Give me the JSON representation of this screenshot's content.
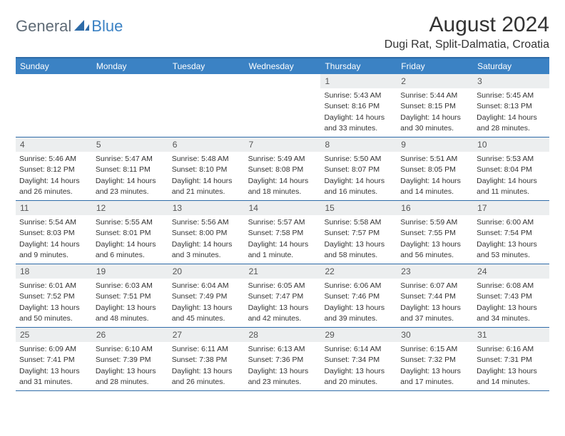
{
  "logo": {
    "general": "General",
    "blue": "Blue"
  },
  "title": "August 2024",
  "location": "Dugi Rat, Split-Dalmatia, Croatia",
  "colors": {
    "header_bg": "#3b82c4",
    "rule": "#2e6ba8",
    "daynum_bg": "#eceeef",
    "text": "#333333",
    "logo_gray": "#5f6b76",
    "logo_blue": "#3b82c4"
  },
  "dow": [
    "Sunday",
    "Monday",
    "Tuesday",
    "Wednesday",
    "Thursday",
    "Friday",
    "Saturday"
  ],
  "weeks": [
    [
      {
        "n": "",
        "empty": true
      },
      {
        "n": "",
        "empty": true
      },
      {
        "n": "",
        "empty": true
      },
      {
        "n": "",
        "empty": true
      },
      {
        "n": "1",
        "sr": "Sunrise: 5:43 AM",
        "ss": "Sunset: 8:16 PM",
        "d1": "Daylight: 14 hours",
        "d2": "and 33 minutes."
      },
      {
        "n": "2",
        "sr": "Sunrise: 5:44 AM",
        "ss": "Sunset: 8:15 PM",
        "d1": "Daylight: 14 hours",
        "d2": "and 30 minutes."
      },
      {
        "n": "3",
        "sr": "Sunrise: 5:45 AM",
        "ss": "Sunset: 8:13 PM",
        "d1": "Daylight: 14 hours",
        "d2": "and 28 minutes."
      }
    ],
    [
      {
        "n": "4",
        "sr": "Sunrise: 5:46 AM",
        "ss": "Sunset: 8:12 PM",
        "d1": "Daylight: 14 hours",
        "d2": "and 26 minutes."
      },
      {
        "n": "5",
        "sr": "Sunrise: 5:47 AM",
        "ss": "Sunset: 8:11 PM",
        "d1": "Daylight: 14 hours",
        "d2": "and 23 minutes."
      },
      {
        "n": "6",
        "sr": "Sunrise: 5:48 AM",
        "ss": "Sunset: 8:10 PM",
        "d1": "Daylight: 14 hours",
        "d2": "and 21 minutes."
      },
      {
        "n": "7",
        "sr": "Sunrise: 5:49 AM",
        "ss": "Sunset: 8:08 PM",
        "d1": "Daylight: 14 hours",
        "d2": "and 18 minutes."
      },
      {
        "n": "8",
        "sr": "Sunrise: 5:50 AM",
        "ss": "Sunset: 8:07 PM",
        "d1": "Daylight: 14 hours",
        "d2": "and 16 minutes."
      },
      {
        "n": "9",
        "sr": "Sunrise: 5:51 AM",
        "ss": "Sunset: 8:05 PM",
        "d1": "Daylight: 14 hours",
        "d2": "and 14 minutes."
      },
      {
        "n": "10",
        "sr": "Sunrise: 5:53 AM",
        "ss": "Sunset: 8:04 PM",
        "d1": "Daylight: 14 hours",
        "d2": "and 11 minutes."
      }
    ],
    [
      {
        "n": "11",
        "sr": "Sunrise: 5:54 AM",
        "ss": "Sunset: 8:03 PM",
        "d1": "Daylight: 14 hours",
        "d2": "and 9 minutes."
      },
      {
        "n": "12",
        "sr": "Sunrise: 5:55 AM",
        "ss": "Sunset: 8:01 PM",
        "d1": "Daylight: 14 hours",
        "d2": "and 6 minutes."
      },
      {
        "n": "13",
        "sr": "Sunrise: 5:56 AM",
        "ss": "Sunset: 8:00 PM",
        "d1": "Daylight: 14 hours",
        "d2": "and 3 minutes."
      },
      {
        "n": "14",
        "sr": "Sunrise: 5:57 AM",
        "ss": "Sunset: 7:58 PM",
        "d1": "Daylight: 14 hours",
        "d2": "and 1 minute."
      },
      {
        "n": "15",
        "sr": "Sunrise: 5:58 AM",
        "ss": "Sunset: 7:57 PM",
        "d1": "Daylight: 13 hours",
        "d2": "and 58 minutes."
      },
      {
        "n": "16",
        "sr": "Sunrise: 5:59 AM",
        "ss": "Sunset: 7:55 PM",
        "d1": "Daylight: 13 hours",
        "d2": "and 56 minutes."
      },
      {
        "n": "17",
        "sr": "Sunrise: 6:00 AM",
        "ss": "Sunset: 7:54 PM",
        "d1": "Daylight: 13 hours",
        "d2": "and 53 minutes."
      }
    ],
    [
      {
        "n": "18",
        "sr": "Sunrise: 6:01 AM",
        "ss": "Sunset: 7:52 PM",
        "d1": "Daylight: 13 hours",
        "d2": "and 50 minutes."
      },
      {
        "n": "19",
        "sr": "Sunrise: 6:03 AM",
        "ss": "Sunset: 7:51 PM",
        "d1": "Daylight: 13 hours",
        "d2": "and 48 minutes."
      },
      {
        "n": "20",
        "sr": "Sunrise: 6:04 AM",
        "ss": "Sunset: 7:49 PM",
        "d1": "Daylight: 13 hours",
        "d2": "and 45 minutes."
      },
      {
        "n": "21",
        "sr": "Sunrise: 6:05 AM",
        "ss": "Sunset: 7:47 PM",
        "d1": "Daylight: 13 hours",
        "d2": "and 42 minutes."
      },
      {
        "n": "22",
        "sr": "Sunrise: 6:06 AM",
        "ss": "Sunset: 7:46 PM",
        "d1": "Daylight: 13 hours",
        "d2": "and 39 minutes."
      },
      {
        "n": "23",
        "sr": "Sunrise: 6:07 AM",
        "ss": "Sunset: 7:44 PM",
        "d1": "Daylight: 13 hours",
        "d2": "and 37 minutes."
      },
      {
        "n": "24",
        "sr": "Sunrise: 6:08 AM",
        "ss": "Sunset: 7:43 PM",
        "d1": "Daylight: 13 hours",
        "d2": "and 34 minutes."
      }
    ],
    [
      {
        "n": "25",
        "sr": "Sunrise: 6:09 AM",
        "ss": "Sunset: 7:41 PM",
        "d1": "Daylight: 13 hours",
        "d2": "and 31 minutes."
      },
      {
        "n": "26",
        "sr": "Sunrise: 6:10 AM",
        "ss": "Sunset: 7:39 PM",
        "d1": "Daylight: 13 hours",
        "d2": "and 28 minutes."
      },
      {
        "n": "27",
        "sr": "Sunrise: 6:11 AM",
        "ss": "Sunset: 7:38 PM",
        "d1": "Daylight: 13 hours",
        "d2": "and 26 minutes."
      },
      {
        "n": "28",
        "sr": "Sunrise: 6:13 AM",
        "ss": "Sunset: 7:36 PM",
        "d1": "Daylight: 13 hours",
        "d2": "and 23 minutes."
      },
      {
        "n": "29",
        "sr": "Sunrise: 6:14 AM",
        "ss": "Sunset: 7:34 PM",
        "d1": "Daylight: 13 hours",
        "d2": "and 20 minutes."
      },
      {
        "n": "30",
        "sr": "Sunrise: 6:15 AM",
        "ss": "Sunset: 7:32 PM",
        "d1": "Daylight: 13 hours",
        "d2": "and 17 minutes."
      },
      {
        "n": "31",
        "sr": "Sunrise: 6:16 AM",
        "ss": "Sunset: 7:31 PM",
        "d1": "Daylight: 13 hours",
        "d2": "and 14 minutes."
      }
    ]
  ]
}
